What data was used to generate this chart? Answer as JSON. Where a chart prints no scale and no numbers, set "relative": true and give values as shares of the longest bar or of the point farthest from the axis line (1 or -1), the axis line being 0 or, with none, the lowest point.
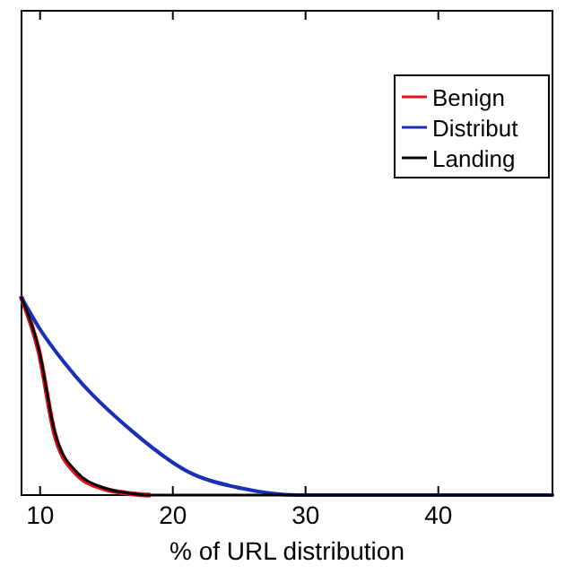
{
  "chart_data": {
    "type": "line",
    "xlabel": "% of URL distribution",
    "relative": true,
    "xlim": [
      8.6,
      48.6
    ],
    "xticks": [
      10,
      20,
      30,
      40
    ],
    "legend": "top right",
    "grid": false,
    "series": [
      {
        "name": "Benign",
        "color": "#e8101c",
        "x": [
          8.6,
          9.9,
          11.1,
          12.7,
          14.9,
          16.5,
          18.2
        ],
        "values": [
          1,
          0.73,
          0.31,
          0.11,
          0.03,
          0.01,
          0
        ]
      },
      {
        "name": "Distribut",
        "color": "#1a2fb8",
        "x": [
          8.6,
          9.9,
          12.7,
          17,
          21.1,
          25.2,
          29.4,
          35,
          48.6
        ],
        "values": [
          1,
          0.85,
          0.6,
          0.32,
          0.12,
          0.034,
          0,
          0,
          0
        ]
      },
      {
        "name": "Landing",
        "color": "#000000",
        "x": [
          8.6,
          9.9,
          11.1,
          12.7,
          14.9,
          16.5,
          18.2,
          20,
          48.6
        ],
        "values": [
          1,
          0.74,
          0.32,
          0.12,
          0.034,
          0.012,
          0,
          0,
          0
        ]
      }
    ]
  }
}
